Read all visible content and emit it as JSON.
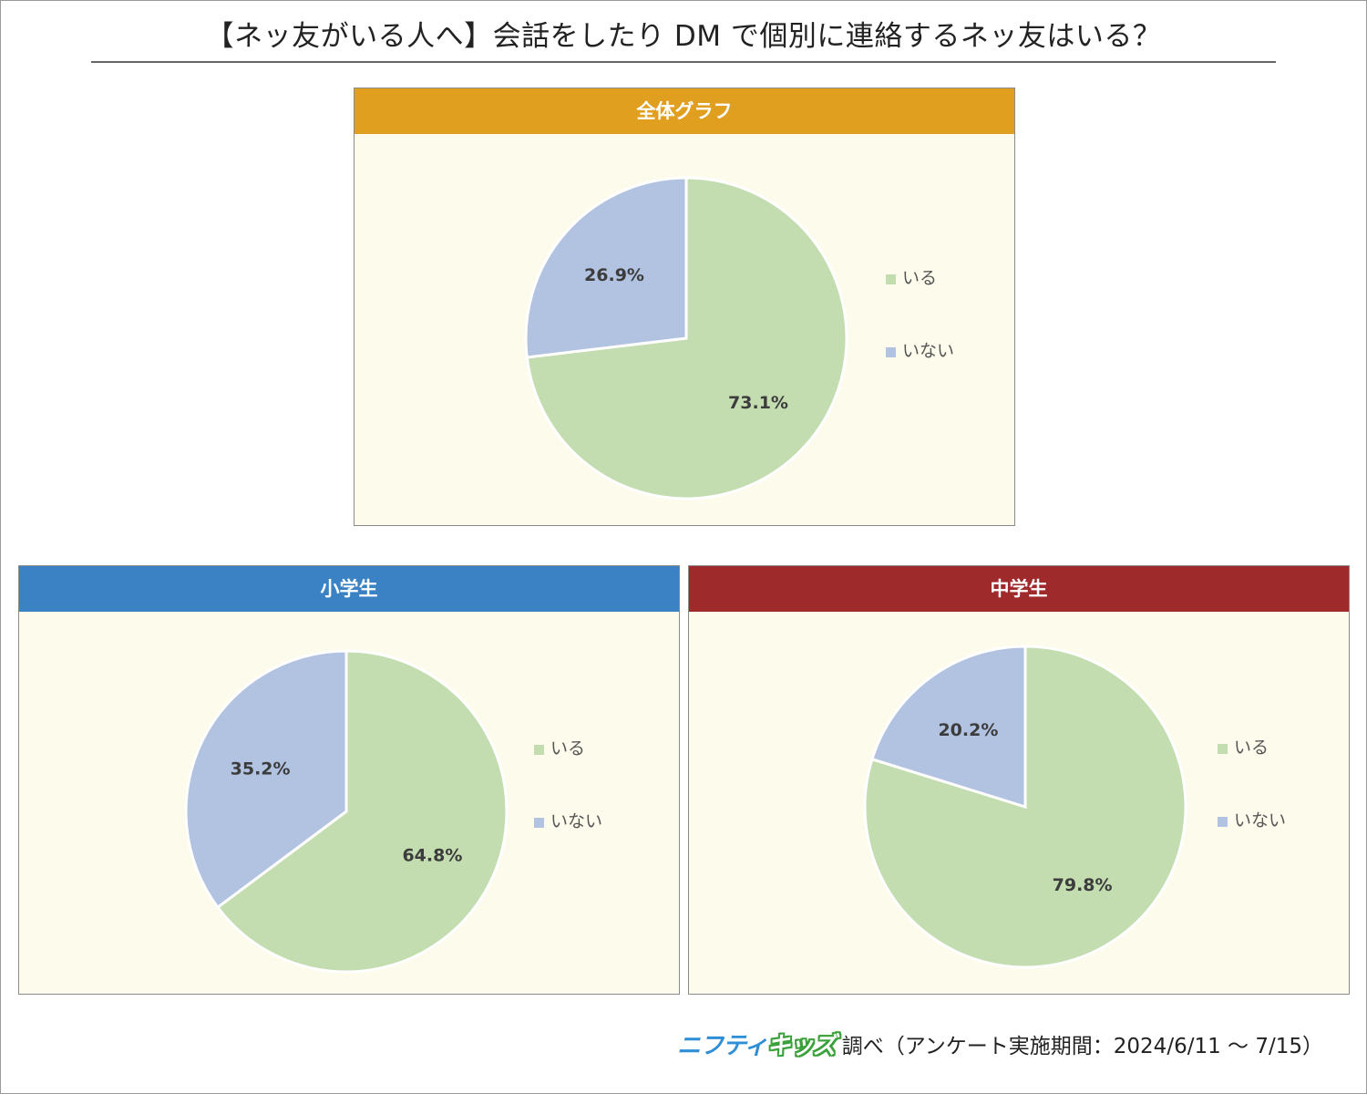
{
  "title": "【ネッ友がいる人へ】会話をしたり DM で個別に連絡するネッ友はいる？",
  "legend_labels": [
    "いる",
    "いない"
  ],
  "colors": {
    "iru": "#c3dcb0",
    "inai": "#b2c3e1",
    "header_overall": "#e09f1f",
    "header_elementary": "#3b82c4",
    "header_junior": "#9e2a2b",
    "panel_bg": "#fdfbec"
  },
  "chart_data": [
    {
      "type": "pie",
      "title": "全体グラフ",
      "categories": [
        "いる",
        "いない"
      ],
      "values": [
        73.1,
        26.9
      ],
      "data_labels": [
        "73.1%",
        "26.9%"
      ],
      "legend_position": "right"
    },
    {
      "type": "pie",
      "title": "小学生",
      "categories": [
        "いる",
        "いない"
      ],
      "values": [
        64.8,
        35.2
      ],
      "data_labels": [
        "64.8%",
        "35.2%"
      ],
      "legend_position": "right"
    },
    {
      "type": "pie",
      "title": "中学生",
      "categories": [
        "いる",
        "いない"
      ],
      "values": [
        79.8,
        20.2
      ],
      "data_labels": [
        "79.8%",
        "20.2%"
      ],
      "legend_position": "right"
    }
  ],
  "footer": {
    "brand_nifty": "ニフティ",
    "brand_kids": "キッズ",
    "source": "調べ（アンケート実施期間：2024/6/11 ～ 7/15）"
  }
}
